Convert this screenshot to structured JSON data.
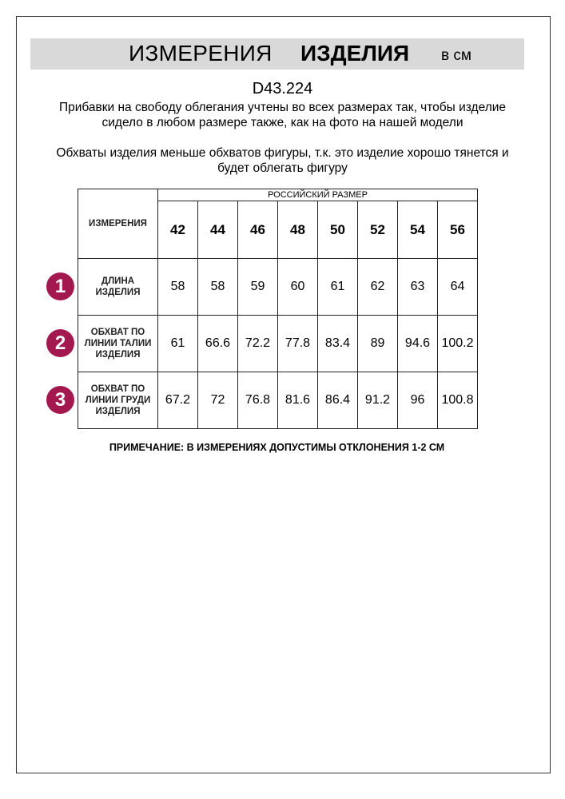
{
  "header": {
    "title_regular": "ИЗМЕРЕНИЯ",
    "title_bold": "ИЗДЕЛИЯ",
    "unit": "в см"
  },
  "product_code": "D43.224",
  "paragraphs": [
    "Прибавки на свободу облегания учтены во всех размерах так, чтобы изделие сидело в любом размере также, как на фото на нашей модели",
    "Обхваты изделия меньше обхватов фигуры, т.к. это изделие хорошо тянется и будет облегать фигуру"
  ],
  "table": {
    "measure_header": "ИЗМЕРЕНИЯ",
    "size_header": "РОССИЙСКИЙ РАЗМЕР",
    "sizes": [
      "42",
      "44",
      "46",
      "48",
      "50",
      "52",
      "54",
      "56"
    ],
    "rows": [
      {
        "badge": "1",
        "label": "ДЛИНА ИЗДЕЛИЯ",
        "values": [
          "58",
          "58",
          "59",
          "60",
          "61",
          "62",
          "63",
          "64"
        ]
      },
      {
        "badge": "2",
        "label": "ОБХВАТ ПО ЛИНИИ ТАЛИИ ИЗДЕЛИЯ",
        "values": [
          "61",
          "66.6",
          "72.2",
          "77.8",
          "83.4",
          "89",
          "94.6",
          "100.2"
        ]
      },
      {
        "badge": "3",
        "label": "ОБХВАТ ПО ЛИНИИ ГРУДИ ИЗДЕЛИЯ",
        "values": [
          "67.2",
          "72",
          "76.8",
          "81.6",
          "86.4",
          "91.2",
          "96",
          "100.8"
        ]
      }
    ]
  },
  "note": "ПРИМЕЧАНИЕ: В ИЗМЕРЕНИЯХ ДОПУСТИМЫ ОТКЛОНЕНИЯ 1-2 СМ",
  "colors": {
    "badge": "#a3184f",
    "title_bar": "#d9d9d9"
  }
}
